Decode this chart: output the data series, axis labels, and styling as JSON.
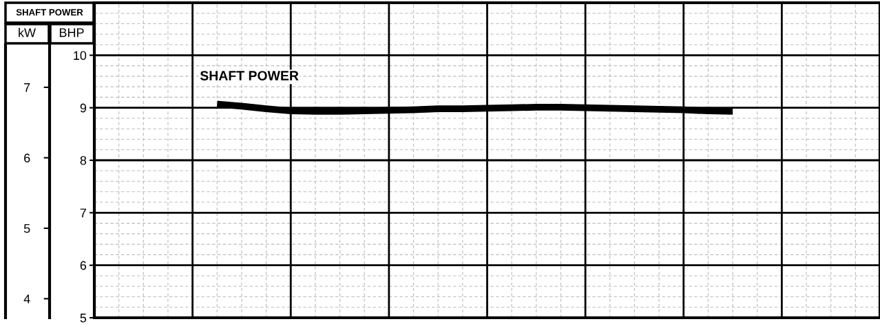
{
  "chart_data": {
    "type": "line",
    "title": "SHAFT POWER",
    "ylabel": "BHP",
    "y2label": "kW",
    "categories": [
      null,
      null,
      null,
      null,
      null,
      null,
      null,
      null,
      null,
      null,
      null,
      null,
      null,
      null,
      null,
      null,
      null,
      null,
      null,
      null,
      null,
      null,
      null,
      null,
      null,
      null,
      null,
      null,
      null,
      null,
      null,
      null,
      null
    ],
    "series": [
      {
        "name": "SHAFT POWER",
        "color": "#000000",
        "values": [
          null,
          null,
          null,
          null,
          null,
          9.07,
          9.03,
          8.98,
          8.94,
          8.93,
          8.93,
          8.94,
          8.95,
          8.96,
          8.98,
          8.98,
          8.99,
          9.0,
          9.01,
          9.01,
          9.0,
          8.99,
          8.98,
          8.97,
          8.96,
          8.94,
          8.93,
          null,
          null,
          null,
          null,
          null,
          null
        ]
      }
    ],
    "ylim": [
      5,
      11
    ],
    "yticks": [
      5,
      6,
      7,
      8,
      9,
      10
    ],
    "y2lim": [
      3.73,
      8.2
    ],
    "y2ticks": [
      4,
      5,
      6,
      7
    ],
    "grid": true,
    "legend": false,
    "tick_labels": "y",
    "marker": "none",
    "line_style": "solid"
  }
}
